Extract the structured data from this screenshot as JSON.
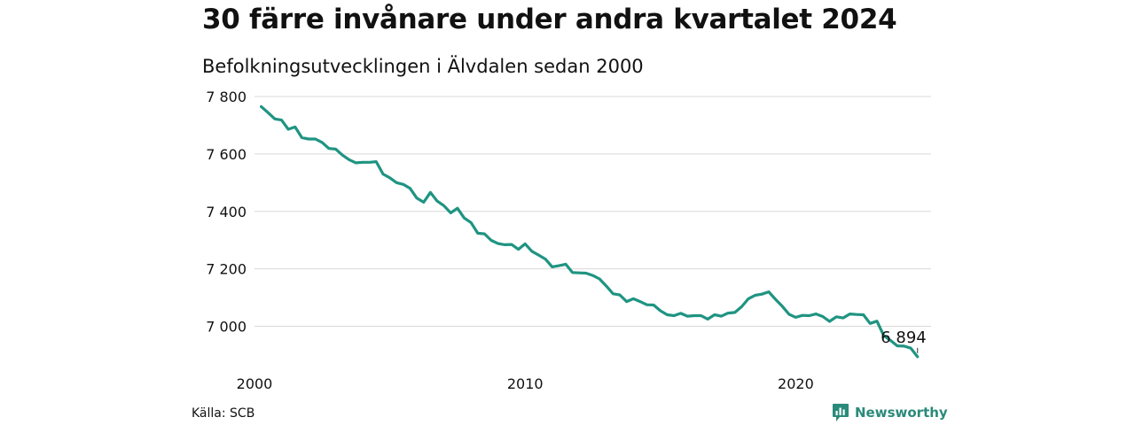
{
  "header": {
    "title": "30 färre invånare under andra kvartalet 2024",
    "subtitle": "Befolkningsutvecklingen i Älvdalen sedan 2000"
  },
  "footer": {
    "source": "Källa: SCB",
    "brand": "Newsworthy"
  },
  "colors": {
    "line": "#1f9482",
    "grid": "#d9d9d9",
    "brand": "#2a8a7a"
  },
  "chart_data": {
    "type": "line",
    "title": "30 färre invånare under andra kvartalet 2024",
    "subtitle": "Befolkningsutvecklingen i Älvdalen sedan 2000",
    "xlabel": "",
    "ylabel": "",
    "grid": true,
    "yticks": [
      7000,
      7200,
      7400,
      7600,
      7800
    ],
    "ytick_labels": [
      "7 000",
      "7 200",
      "7 400",
      "7 600",
      "7 800"
    ],
    "xticks": [
      2000,
      2010,
      2020
    ],
    "xtick_labels": [
      "2000",
      "2010",
      "2020"
    ],
    "xlim": [
      2000,
      2025
    ],
    "ylim": [
      6880,
      7810
    ],
    "end_label": "6 894",
    "series": [
      {
        "values": [
          {
            "x": 2000.25,
            "y": 7765
          },
          {
            "x": 2000.5,
            "y": 7744
          },
          {
            "x": 2000.75,
            "y": 7722
          },
          {
            "x": 2001.0,
            "y": 7718
          },
          {
            "x": 2001.25,
            "y": 7686
          },
          {
            "x": 2001.5,
            "y": 7694
          },
          {
            "x": 2001.75,
            "y": 7657
          },
          {
            "x": 2002.0,
            "y": 7652
          },
          {
            "x": 2002.25,
            "y": 7652
          },
          {
            "x": 2002.5,
            "y": 7640
          },
          {
            "x": 2002.75,
            "y": 7619
          },
          {
            "x": 2003.0,
            "y": 7617
          },
          {
            "x": 2003.25,
            "y": 7596
          },
          {
            "x": 2003.5,
            "y": 7580
          },
          {
            "x": 2003.75,
            "y": 7569
          },
          {
            "x": 2004.0,
            "y": 7571
          },
          {
            "x": 2004.25,
            "y": 7571
          },
          {
            "x": 2004.5,
            "y": 7573
          },
          {
            "x": 2004.75,
            "y": 7530
          },
          {
            "x": 2005.0,
            "y": 7517
          },
          {
            "x": 2005.25,
            "y": 7500
          },
          {
            "x": 2005.5,
            "y": 7494
          },
          {
            "x": 2005.75,
            "y": 7480
          },
          {
            "x": 2006.0,
            "y": 7446
          },
          {
            "x": 2006.25,
            "y": 7432
          },
          {
            "x": 2006.5,
            "y": 7466
          },
          {
            "x": 2006.75,
            "y": 7436
          },
          {
            "x": 2007.0,
            "y": 7420
          },
          {
            "x": 2007.25,
            "y": 7395
          },
          {
            "x": 2007.5,
            "y": 7411
          },
          {
            "x": 2007.75,
            "y": 7377
          },
          {
            "x": 2008.0,
            "y": 7361
          },
          {
            "x": 2008.25,
            "y": 7324
          },
          {
            "x": 2008.5,
            "y": 7322
          },
          {
            "x": 2008.75,
            "y": 7299
          },
          {
            "x": 2009.0,
            "y": 7288
          },
          {
            "x": 2009.25,
            "y": 7284
          },
          {
            "x": 2009.5,
            "y": 7285
          },
          {
            "x": 2009.75,
            "y": 7268
          },
          {
            "x": 2010.0,
            "y": 7287
          },
          {
            "x": 2010.25,
            "y": 7261
          },
          {
            "x": 2010.5,
            "y": 7248
          },
          {
            "x": 2010.75,
            "y": 7234
          },
          {
            "x": 2011.0,
            "y": 7207
          },
          {
            "x": 2011.25,
            "y": 7211
          },
          {
            "x": 2011.5,
            "y": 7216
          },
          {
            "x": 2011.75,
            "y": 7187
          },
          {
            "x": 2012.0,
            "y": 7186
          },
          {
            "x": 2012.25,
            "y": 7185
          },
          {
            "x": 2012.5,
            "y": 7177
          },
          {
            "x": 2012.75,
            "y": 7165
          },
          {
            "x": 2013.0,
            "y": 7140
          },
          {
            "x": 2013.25,
            "y": 7113
          },
          {
            "x": 2013.5,
            "y": 7109
          },
          {
            "x": 2013.75,
            "y": 7086
          },
          {
            "x": 2014.0,
            "y": 7096
          },
          {
            "x": 2014.25,
            "y": 7086
          },
          {
            "x": 2014.5,
            "y": 7075
          },
          {
            "x": 2014.75,
            "y": 7074
          },
          {
            "x": 2015.0,
            "y": 7054
          },
          {
            "x": 2015.25,
            "y": 7040
          },
          {
            "x": 2015.5,
            "y": 7037
          },
          {
            "x": 2015.75,
            "y": 7045
          },
          {
            "x": 2016.0,
            "y": 7035
          },
          {
            "x": 2016.25,
            "y": 7037
          },
          {
            "x": 2016.5,
            "y": 7037
          },
          {
            "x": 2016.75,
            "y": 7025
          },
          {
            "x": 2017.0,
            "y": 7040
          },
          {
            "x": 2017.25,
            "y": 7035
          },
          {
            "x": 2017.5,
            "y": 7046
          },
          {
            "x": 2017.75,
            "y": 7048
          },
          {
            "x": 2018.0,
            "y": 7068
          },
          {
            "x": 2018.25,
            "y": 7096
          },
          {
            "x": 2018.5,
            "y": 7108
          },
          {
            "x": 2018.75,
            "y": 7112
          },
          {
            "x": 2019.0,
            "y": 7120
          },
          {
            "x": 2019.25,
            "y": 7094
          },
          {
            "x": 2019.5,
            "y": 7070
          },
          {
            "x": 2019.75,
            "y": 7042
          },
          {
            "x": 2020.0,
            "y": 7031
          },
          {
            "x": 2020.25,
            "y": 7038
          },
          {
            "x": 2020.5,
            "y": 7037
          },
          {
            "x": 2020.75,
            "y": 7043
          },
          {
            "x": 2021.0,
            "y": 7034
          },
          {
            "x": 2021.25,
            "y": 7017
          },
          {
            "x": 2021.5,
            "y": 7033
          },
          {
            "x": 2021.75,
            "y": 7029
          },
          {
            "x": 2022.0,
            "y": 7043
          },
          {
            "x": 2022.25,
            "y": 7041
          },
          {
            "x": 2022.5,
            "y": 7040
          },
          {
            "x": 2022.75,
            "y": 7010
          },
          {
            "x": 2023.0,
            "y": 7018
          },
          {
            "x": 2023.25,
            "y": 6968
          },
          {
            "x": 2023.5,
            "y": 6951
          },
          {
            "x": 2023.75,
            "y": 6932
          },
          {
            "x": 2024.0,
            "y": 6931
          },
          {
            "x": 2024.25,
            "y": 6924
          },
          {
            "x": 2024.5,
            "y": 6894
          }
        ]
      }
    ]
  }
}
